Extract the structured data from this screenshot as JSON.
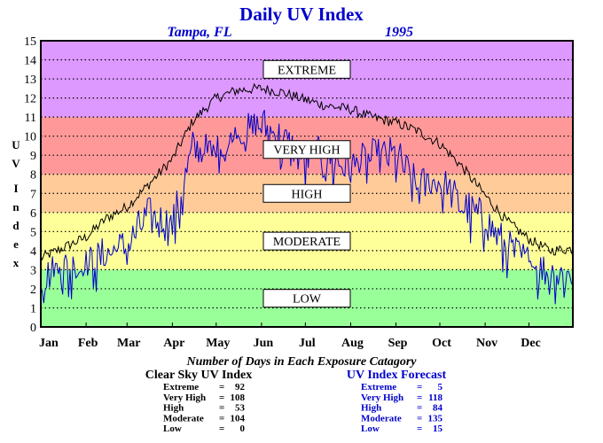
{
  "chart_data": {
    "type": "line",
    "title": "Daily UV Index",
    "location": "Tampa, FL",
    "year": "1995",
    "ylabel": "U V  I n d e x",
    "ylim": [
      0,
      15
    ],
    "yticks": [
      "0",
      "1",
      "2",
      "3",
      "4",
      "5",
      "6",
      "7",
      "8",
      "9",
      "10",
      "11",
      "12",
      "13",
      "14",
      "15"
    ],
    "x_tick_labels": [
      "Jan",
      "Feb",
      "Mar",
      "Apr",
      "May",
      "Jun",
      "Jul",
      "Aug",
      "Sep",
      "Oct",
      "Nov",
      "Dec"
    ],
    "grid": true,
    "bands": [
      {
        "label": "LOW",
        "from": 0,
        "to": 3,
        "color": "#99ff99"
      },
      {
        "label": "MODERATE",
        "from": 3,
        "to": 6,
        "color": "#ffff99"
      },
      {
        "label": "HIGH",
        "from": 6,
        "to": 8,
        "color": "#ffcc99"
      },
      {
        "label": "VERY HIGH",
        "from": 8,
        "to": 11,
        "color": "#ff9999"
      },
      {
        "label": "EXTREME",
        "from": 11,
        "to": 15,
        "color": "#dd99ff"
      }
    ],
    "series": [
      {
        "name": "Clear Sky UV Index",
        "color": "#000000",
        "days": [
          1,
          15,
          32,
          46,
          60,
          74,
          91,
          105,
          121,
          135,
          152,
          166,
          182,
          196,
          213,
          227,
          244,
          258,
          274,
          288,
          305,
          319,
          335,
          349,
          365
        ],
        "values": [
          3.6,
          4.1,
          4.7,
          5.7,
          6.3,
          7.4,
          8.8,
          10.8,
          12.0,
          12.4,
          12.5,
          12.3,
          11.9,
          11.6,
          11.4,
          11.0,
          10.7,
          10.3,
          9.6,
          8.5,
          6.9,
          5.6,
          4.6,
          4.0,
          4.1
        ]
      },
      {
        "name": "UV Index Forecast",
        "color": "#0000cc",
        "days": [
          1,
          15,
          32,
          46,
          60,
          74,
          91,
          105,
          121,
          135,
          152,
          166,
          182,
          196,
          213,
          227,
          244,
          258,
          274,
          288,
          305,
          319,
          335,
          349,
          365
        ],
        "values": [
          2.6,
          3.3,
          3.3,
          4.0,
          4.4,
          6.0,
          5.5,
          9.5,
          9.2,
          10.0,
          10.8,
          10.0,
          9.0,
          9.2,
          8.5,
          9.0,
          9.2,
          7.5,
          7.8,
          6.6,
          5.8,
          4.4,
          3.5,
          3.0,
          2.9
        ]
      }
    ],
    "days_caption": "Number of Days in Each Exposure Catagory",
    "stats": [
      {
        "title": "Clear Sky UV Index",
        "color": "#000000",
        "rows": [
          {
            "label": "Extreme",
            "eq": "=",
            "value": "92"
          },
          {
            "label": "Very High",
            "eq": "=",
            "value": "108"
          },
          {
            "label": "High",
            "eq": "=",
            "value": "53"
          },
          {
            "label": "Moderate",
            "eq": "=",
            "value": "104"
          },
          {
            "label": "Low",
            "eq": "=",
            "value": "0"
          }
        ]
      },
      {
        "title": "UV Index Forecast",
        "color": "#0000cc",
        "rows": [
          {
            "label": "Extreme",
            "eq": "=",
            "value": "5"
          },
          {
            "label": "Very High",
            "eq": "=",
            "value": "118"
          },
          {
            "label": "High",
            "eq": "=",
            "value": "84"
          },
          {
            "label": "Moderate",
            "eq": "=",
            "value": "135"
          },
          {
            "label": "Low",
            "eq": "=",
            "value": "15"
          }
        ]
      }
    ]
  }
}
